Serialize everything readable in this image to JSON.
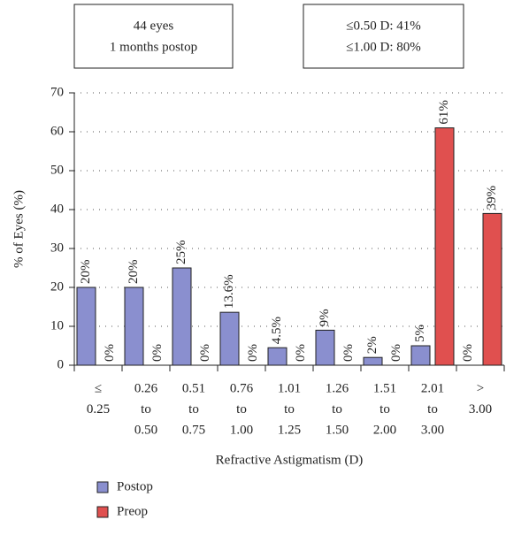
{
  "chart_data": {
    "type": "bar",
    "annotations": [
      [
        "44 eyes",
        "1 months postop"
      ],
      [
        "≤0.50 D: 41%",
        "≤1.00 D: 80%"
      ]
    ],
    "y_label": "% of Eyes (%)",
    "x_label": "Refractive Astigmatism (D)",
    "categories": [
      [
        "≤",
        "0.25"
      ],
      [
        "0.26",
        "to",
        "0.50"
      ],
      [
        "0.51",
        "to",
        "0.75"
      ],
      [
        "0.76",
        "to",
        "1.00"
      ],
      [
        "1.01",
        "to",
        "1.25"
      ],
      [
        "1.26",
        "to",
        "1.50"
      ],
      [
        "1.51",
        "to",
        "2.00"
      ],
      [
        "2.01",
        "to",
        "3.00"
      ],
      [
        ">",
        "3.00"
      ]
    ],
    "series": [
      {
        "name": "Postop",
        "color": "#8a8fcf",
        "values": [
          20,
          20,
          25,
          13.6,
          4.5,
          9,
          2,
          5,
          0
        ],
        "value_labels": [
          "20%",
          "20%",
          "25%",
          "13.6%",
          "4.5%",
          "9%",
          "2%",
          "5%",
          "0%"
        ]
      },
      {
        "name": "Preop",
        "color": "#e0504f",
        "values": [
          0,
          0,
          0,
          0,
          0,
          0,
          0,
          61,
          39
        ],
        "value_labels": [
          "0%",
          "0%",
          "0%",
          "0%",
          "0%",
          "0%",
          "0%",
          "61%",
          "39%"
        ]
      }
    ],
    "ylim": [
      0,
      70
    ],
    "yticks": [
      0,
      10,
      20,
      30,
      40,
      50,
      60,
      70
    ],
    "grid": true,
    "legend": "bottom-left"
  }
}
